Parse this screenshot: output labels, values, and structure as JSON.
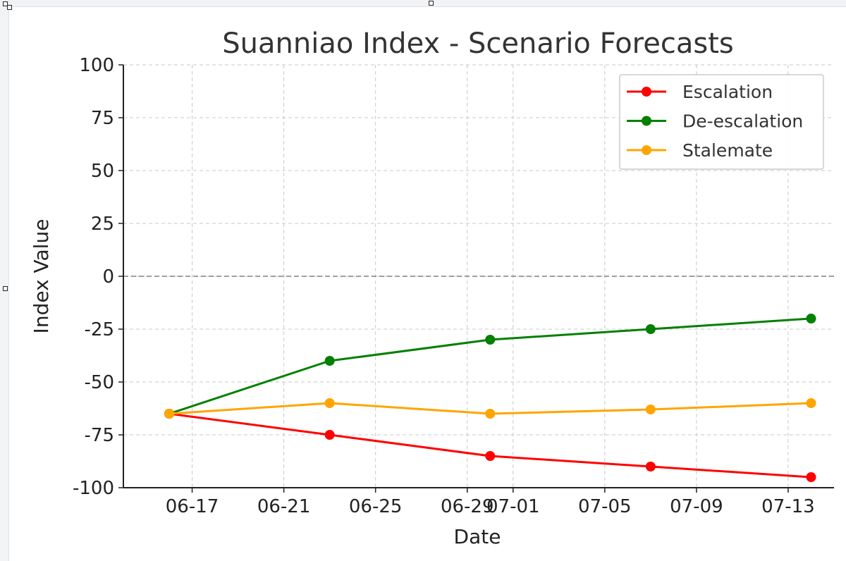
{
  "chart_data": {
    "type": "line",
    "title": "Suanniao Index - Scenario Forecasts",
    "xlabel": "Date",
    "ylabel": "Index Value",
    "ylim": [
      -100,
      100
    ],
    "xlim": [
      "2025-06-14",
      "2025-07-15"
    ],
    "yticks": [
      100,
      75,
      50,
      25,
      0,
      -25,
      -50,
      -75,
      -100
    ],
    "ytick_labels": [
      "100",
      "75",
      "50",
      "25",
      "0",
      "-25",
      "-50",
      "-75",
      "-100"
    ],
    "xticks": [
      "2025-06-17",
      "2025-06-21",
      "2025-06-25",
      "2025-06-29",
      "2025-07-01",
      "2025-07-05",
      "2025-07-09",
      "2025-07-13"
    ],
    "xtick_labels": [
      "06-17",
      "06-21",
      "06-25",
      "06-29",
      "07-01",
      "07-05",
      "07-09",
      "07-13"
    ],
    "x": [
      "2025-06-16",
      "2025-06-23",
      "2025-06-30",
      "2025-07-07",
      "2025-07-14"
    ],
    "series": [
      {
        "name": "Escalation",
        "color": "#ff0000",
        "values": [
          -65,
          -75,
          -85,
          -90,
          -95
        ]
      },
      {
        "name": "De-escalation",
        "color": "#008000",
        "values": [
          -65,
          -40,
          -30,
          -25,
          -20
        ]
      },
      {
        "name": "Stalemate",
        "color": "#ffa500",
        "values": [
          -65,
          -60,
          -65,
          -63,
          -60
        ]
      }
    ],
    "zero_line": true,
    "grid": true,
    "legend_position": "top-right"
  }
}
